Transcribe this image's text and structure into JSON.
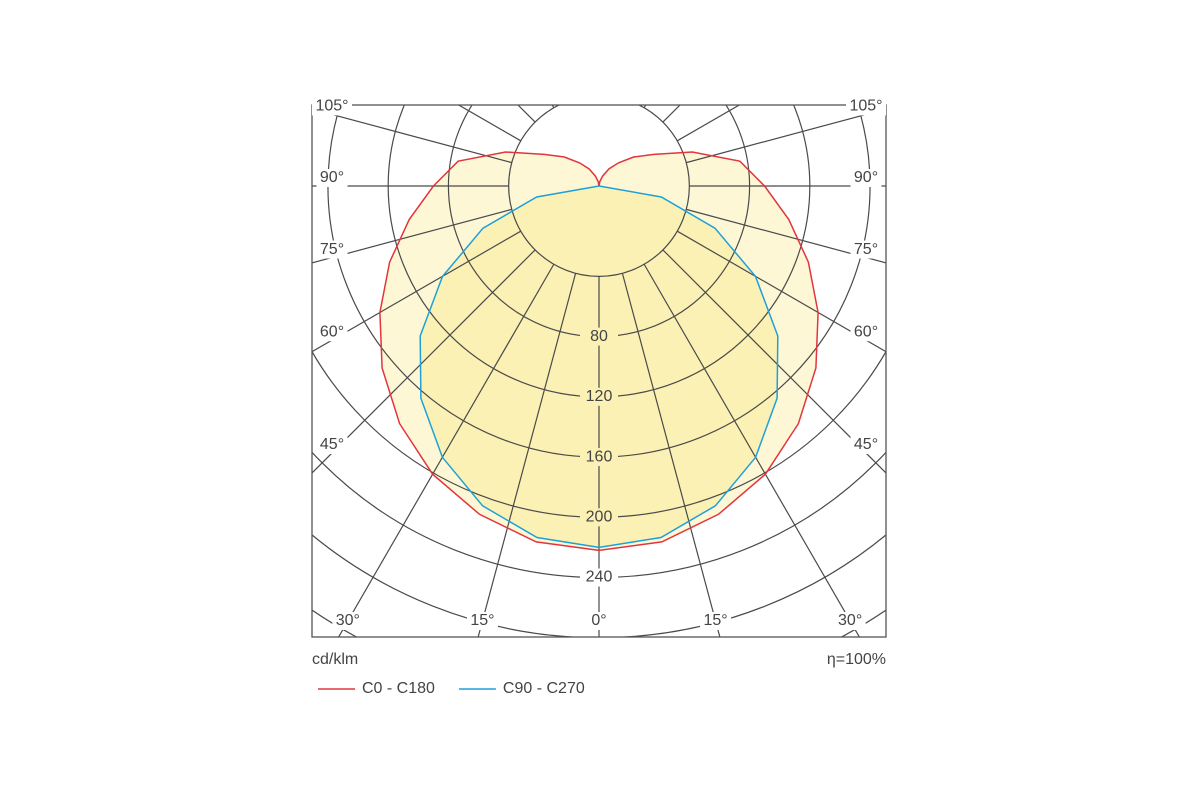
{
  "chart_data": {
    "type": "polar",
    "units_label": "cd/klm",
    "efficiency_label": "η=100%",
    "rlim": [
      -20,
      320
    ],
    "rticks": [
      80,
      120,
      160,
      200,
      240
    ],
    "angle_ticks": [
      {
        "value": 0,
        "label": "0°"
      },
      {
        "value": 15,
        "label": "15°"
      },
      {
        "value": 30,
        "label": "30°"
      },
      {
        "value": 45,
        "label": "45°"
      },
      {
        "value": 60,
        "label": "60°"
      },
      {
        "value": 75,
        "label": "75°"
      },
      {
        "value": 90,
        "label": "90°"
      },
      {
        "value": 105,
        "label": "105°"
      }
    ],
    "series": [
      {
        "name": "C0 - C180",
        "color": "#e0363c",
        "fill": "#fdf7d6",
        "angles": [
          0,
          10,
          20,
          30,
          40,
          50,
          60,
          70,
          80,
          90,
          100,
          110,
          120,
          130,
          140,
          150,
          160,
          170,
          180
        ],
        "values": [
          222,
          220,
          212,
          201,
          186,
          168,
          148,
          128,
          108,
          90,
          75,
          46,
          22,
          10,
          0,
          -7,
          -13,
          -17,
          -20
        ]
      },
      {
        "name": "C90 - C270",
        "color": "#1ea0d8",
        "fill": "#fbf1b5",
        "angles": [
          0,
          10,
          20,
          30,
          40,
          50,
          60,
          70,
          80,
          90
        ],
        "values": [
          220,
          217,
          206,
          188,
          164,
          135,
          100,
          62,
          22,
          -20
        ]
      }
    ]
  }
}
